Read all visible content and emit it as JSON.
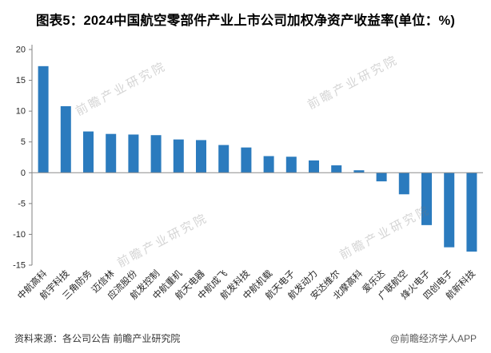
{
  "title": "图表5：2024中国航空零部件产业上市公司加权净资产收益率(单位：%)",
  "footer": {
    "source": "资料来源：各公司公告 前瞻产业研究院",
    "brand": "@前瞻经济学人APP"
  },
  "watermark": {
    "text": "前瞻产业研究院"
  },
  "colors": {
    "bar": "#2B7BBE",
    "axis": "#808080",
    "zero_line": "#8c8c8c",
    "tick_text": "#262626",
    "label_text": "#262626"
  },
  "chart_data": {
    "type": "bar",
    "title": "2024中国航空零部件产业上市公司加权净资产收益率",
    "unit": "%",
    "categories": [
      "中航高科",
      "航宇科技",
      "三角防务",
      "迈信林",
      "应流股份",
      "航发控制",
      "中航重机",
      "航天电器",
      "中航成飞",
      "航发科技",
      "中航机载",
      "航天电子",
      "航发动力",
      "安达维尔",
      "北摩高科",
      "爱乐达",
      "广联航空",
      "烽火电子",
      "四创电子",
      "航新科技"
    ],
    "values": [
      17.3,
      10.8,
      6.7,
      6.3,
      6.2,
      6.1,
      5.4,
      5.3,
      4.5,
      4.1,
      2.7,
      2.6,
      2.0,
      1.2,
      0.4,
      -1.4,
      -3.5,
      -8.5,
      -12.1,
      -12.8
    ],
    "ylim": [
      -15,
      20
    ],
    "yticks": [
      20,
      15,
      10,
      5,
      0,
      -5,
      -10,
      -15
    ],
    "grid": false,
    "legend_position": "none",
    "xlabel": "",
    "ylabel": ""
  }
}
